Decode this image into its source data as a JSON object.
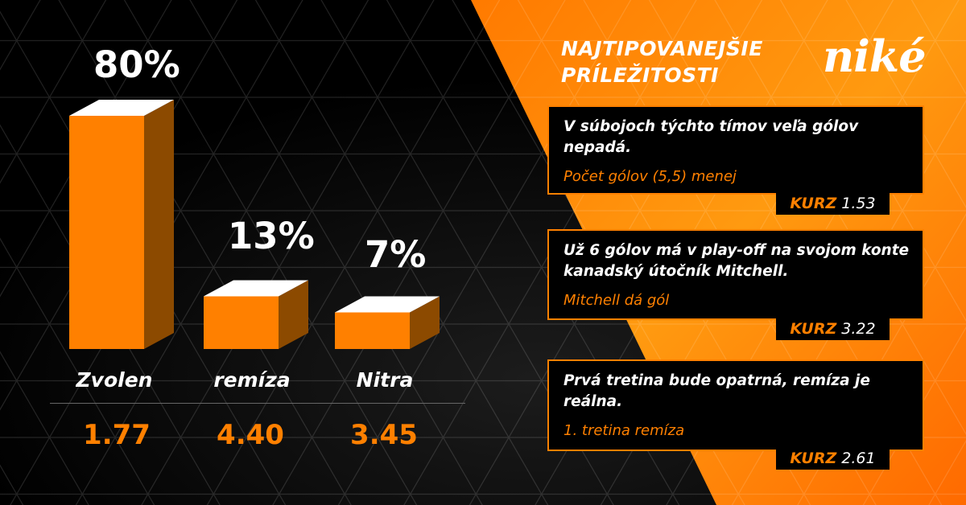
{
  "header": {
    "title_line1": "NAJTIPOVANEJŠIE",
    "title_line2": "PRÍLEŽITOSTI",
    "logo": "niké"
  },
  "colors": {
    "accent": "#ff8000",
    "bar_side": "#8c4a00",
    "background": "#000000"
  },
  "chart_data": {
    "type": "bar",
    "categories": [
      "Zvolen",
      "remíza",
      "Nitra"
    ],
    "values": [
      80,
      13,
      7
    ],
    "value_labels": [
      "80%",
      "13%",
      "7%"
    ],
    "odds": [
      "1.77",
      "4.40",
      "3.45"
    ],
    "ylim": [
      0,
      100
    ]
  },
  "tips": [
    {
      "description": "V súbojoch týchto tímov veľa gólov nepadá.",
      "pick": "Počet gólov (5,5) menej",
      "kurz_label": "KURZ",
      "kurz": "1.53"
    },
    {
      "description": "Už 6 gólov má v play-off na svojom konte kanadský útočník Mitchell.",
      "pick": "Mitchell dá gól",
      "kurz_label": "KURZ",
      "kurz": "3.22"
    },
    {
      "description": "Prvá tretina bude opatrná, remíza je reálna.",
      "pick": "1. tretina remíza",
      "kurz_label": "KURZ",
      "kurz": "2.61"
    }
  ]
}
